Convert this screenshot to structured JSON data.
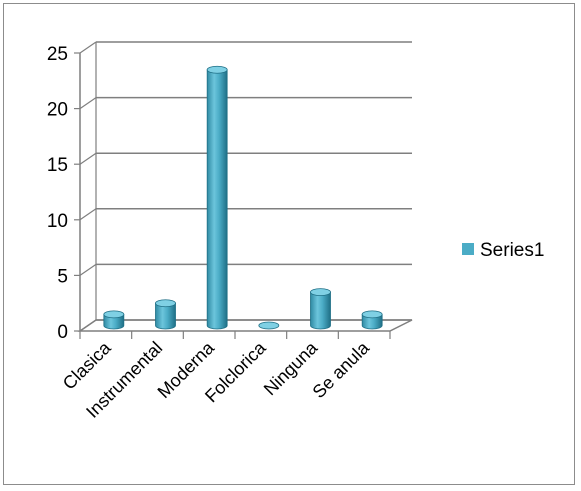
{
  "chart_data": {
    "type": "bar",
    "style": "3d-cylinder",
    "title": "",
    "xlabel": "",
    "ylabel": "",
    "categories": [
      "Clasica",
      "Instrumental",
      "Moderna",
      "Folclorica",
      "Ninguna",
      "Se anula"
    ],
    "series": [
      {
        "name": "Series1",
        "values": [
          1,
          2,
          23,
          0,
          3,
          1
        ],
        "color": "#4bacc6"
      }
    ],
    "ylim": [
      0,
      25
    ],
    "yticks": [
      0,
      5,
      10,
      15,
      20,
      25
    ],
    "grid": true,
    "legend": "right"
  }
}
